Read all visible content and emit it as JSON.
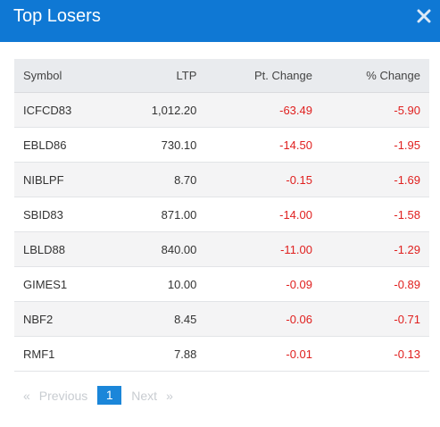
{
  "header": {
    "title": "Top Losers",
    "close_icon": "close-icon"
  },
  "table": {
    "columns": [
      "Symbol",
      "LTP",
      "Pt. Change",
      "% Change"
    ],
    "rows": [
      {
        "symbol": "ICFCD83",
        "ltp": "1,012.20",
        "pt_change": "-63.49",
        "pct_change": "-5.90"
      },
      {
        "symbol": "EBLD86",
        "ltp": "730.10",
        "pt_change": "-14.50",
        "pct_change": "-1.95"
      },
      {
        "symbol": "NIBLPF",
        "ltp": "8.70",
        "pt_change": "-0.15",
        "pct_change": "-1.69"
      },
      {
        "symbol": "SBID83",
        "ltp": "871.00",
        "pt_change": "-14.00",
        "pct_change": "-1.58"
      },
      {
        "symbol": "LBLD88",
        "ltp": "840.00",
        "pt_change": "-11.00",
        "pct_change": "-1.29"
      },
      {
        "symbol": "GIMES1",
        "ltp": "10.00",
        "pt_change": "-0.09",
        "pct_change": "-0.89"
      },
      {
        "symbol": "NBF2",
        "ltp": "8.45",
        "pt_change": "-0.06",
        "pct_change": "-0.71"
      },
      {
        "symbol": "RMF1",
        "ltp": "7.88",
        "pt_change": "-0.01",
        "pct_change": "-0.13"
      }
    ]
  },
  "pagination": {
    "first_arrow": "«",
    "previous_label": "Previous",
    "current_page": "1",
    "next_label": "Next",
    "last_arrow": "»"
  },
  "colors": {
    "header_bg": "#0f78d4",
    "negative": "#e0201f",
    "active_page": "#1b86d9"
  }
}
